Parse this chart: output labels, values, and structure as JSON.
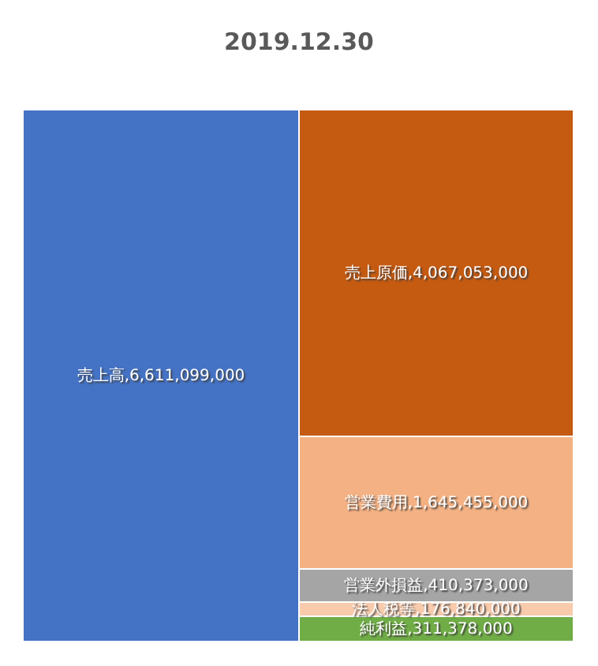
{
  "chart_data": {
    "type": "bar",
    "title": "2019.12.30",
    "stacked": true,
    "categories": [
      null,
      null
    ],
    "tick_labels": false,
    "legend": false,
    "series": [
      {
        "color": "#4472c4",
        "values": [
          6611099000,
          null
        ],
        "value_labels": [
          "売上高,6,611,099,000",
          null
        ]
      },
      {
        "color": "#70ad47",
        "values": [
          null,
          311378000
        ],
        "value_labels": [
          null,
          "純利益,311,378,000"
        ]
      },
      {
        "color": "#f8cbad",
        "values": [
          null,
          176840000
        ],
        "value_labels": [
          null,
          "法人税等,176,840,000"
        ]
      },
      {
        "color": "#a5a5a5",
        "values": [
          null,
          410373000
        ],
        "value_labels": [
          null,
          "営業外損益,410,373,000"
        ]
      },
      {
        "color": "#f4b183",
        "values": [
          null,
          1645455000
        ],
        "value_labels": [
          null,
          "営業費用,1,645,455,000"
        ]
      },
      {
        "color": "#c55a11",
        "values": [
          null,
          4067053000
        ],
        "value_labels": [
          null,
          "売上原価,4,067,053,000"
        ]
      }
    ]
  }
}
